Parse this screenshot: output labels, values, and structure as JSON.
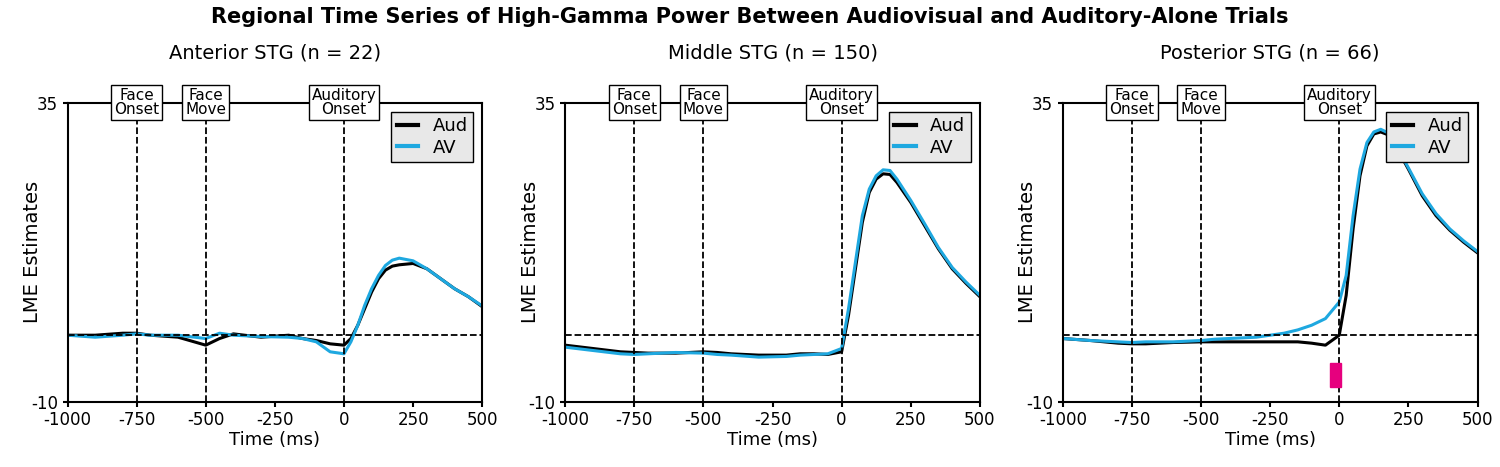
{
  "chart_data": [
    {
      "type": "line",
      "title": "Anterior STG (n = 22)",
      "x_label": "Time (ms)",
      "y_label": "LME Estimates",
      "x": [
        -1000,
        -900,
        -800,
        -750,
        -700,
        -600,
        -500,
        -450,
        -400,
        -300,
        -200,
        -150,
        -100,
        -50,
        0,
        25,
        50,
        75,
        100,
        125,
        150,
        175,
        200,
        250,
        300,
        350,
        400,
        450,
        500
      ],
      "series": [
        {
          "name": "Aud",
          "color": "#000000",
          "values": [
            0,
            0,
            0.3,
            0.3,
            0,
            -0.3,
            -1.5,
            -0.5,
            0.2,
            -0.3,
            0,
            -0.5,
            -0.8,
            -1.3,
            -1.5,
            -0.5,
            1.5,
            4,
            6.5,
            8.5,
            9.8,
            10.4,
            10.6,
            10.8,
            10,
            8.5,
            7,
            5.8,
            4.3
          ]
        },
        {
          "name": "AV",
          "color": "#1ea8e0",
          "values": [
            0,
            -0.3,
            0,
            0.2,
            0,
            0,
            -0.5,
            0.3,
            0,
            -0.2,
            -0.3,
            -0.5,
            -1,
            -2.5,
            -2.8,
            -1,
            1.5,
            4.5,
            7,
            9,
            10.5,
            11.3,
            11.6,
            11.2,
            10,
            8.5,
            7,
            5.8,
            4.4
          ]
        }
      ],
      "xlim": [
        -1000,
        500
      ],
      "xticks": [
        -1000,
        -750,
        -500,
        -250,
        0,
        250,
        500
      ],
      "ylim": [
        -10,
        35
      ],
      "yticks": [
        -10,
        35
      ],
      "legend": "upper right",
      "events": [
        {
          "value": -750,
          "label": "Face\nOnset"
        },
        {
          "value": -500,
          "label": "Face\nMove"
        },
        {
          "value": 0,
          "label": "Auditory\nOnset"
        }
      ],
      "reference_line": 0,
      "significance": []
    },
    {
      "type": "line",
      "title": "Middle STG (n = 150)",
      "x_label": "Time (ms)",
      "y_label": "LME Estimates",
      "x": [
        -1000,
        -900,
        -800,
        -750,
        -700,
        -600,
        -500,
        -450,
        -400,
        -300,
        -200,
        -150,
        -100,
        -50,
        0,
        25,
        50,
        75,
        100,
        125,
        150,
        175,
        200,
        250,
        300,
        350,
        400,
        450,
        500
      ],
      "series": [
        {
          "name": "Aud",
          "color": "#000000",
          "values": [
            -1.5,
            -2,
            -2.5,
            -2.6,
            -2.7,
            -2.7,
            -2.5,
            -2.6,
            -2.8,
            -3,
            -3,
            -2.8,
            -2.8,
            -2.9,
            -2.5,
            3,
            10,
            17,
            21.5,
            23.5,
            24.3,
            24.2,
            23,
            20,
            16.5,
            13,
            10,
            7.8,
            5.8
          ]
        },
        {
          "name": "AV",
          "color": "#1ea8e0",
          "values": [
            -1.8,
            -2.3,
            -2.8,
            -2.9,
            -2.8,
            -2.6,
            -2.7,
            -2.9,
            -3,
            -3.3,
            -3.2,
            -3,
            -2.9,
            -2.8,
            -2,
            4,
            11,
            18,
            22,
            24,
            24.9,
            24.8,
            23.5,
            20.3,
            16.8,
            13.2,
            10.2,
            8,
            6
          ]
        }
      ],
      "xlim": [
        -1000,
        500
      ],
      "xticks": [
        -1000,
        -750,
        -500,
        -250,
        0,
        250,
        500
      ],
      "ylim": [
        -10,
        35
      ],
      "yticks": [
        -10,
        35
      ],
      "legend": "upper right",
      "events": [
        {
          "value": -750,
          "label": "Face\nOnset"
        },
        {
          "value": -500,
          "label": "Face\nMove"
        },
        {
          "value": 0,
          "label": "Auditory\nOnset"
        }
      ],
      "reference_line": 0,
      "significance": []
    },
    {
      "type": "line",
      "title": "Posterior STG (n = 66)",
      "x_label": "Time (ms)",
      "y_label": "LME Estimates",
      "x": [
        -1000,
        -900,
        -800,
        -750,
        -700,
        -600,
        -500,
        -450,
        -400,
        -300,
        -200,
        -150,
        -100,
        -50,
        0,
        25,
        50,
        75,
        100,
        125,
        150,
        175,
        200,
        250,
        300,
        350,
        400,
        450,
        500
      ],
      "series": [
        {
          "name": "Aud",
          "color": "#000000",
          "values": [
            -0.5,
            -0.8,
            -1.2,
            -1.3,
            -1.3,
            -1.1,
            -1,
            -1,
            -1,
            -1,
            -1,
            -1,
            -1.2,
            -1.5,
            0,
            6,
            16,
            24,
            28.5,
            30.3,
            30.6,
            30.2,
            28.8,
            25,
            21,
            18,
            15.8,
            14,
            12.4
          ]
        },
        {
          "name": "AV",
          "color": "#1ea8e0",
          "values": [
            -0.5,
            -0.8,
            -1,
            -1.1,
            -1,
            -1,
            -0.8,
            -0.6,
            -0.5,
            -0.3,
            0.3,
            0.8,
            1.5,
            2.5,
            5,
            9,
            18,
            25,
            29,
            30.6,
            31,
            30.5,
            29,
            25.2,
            21.3,
            18.3,
            16,
            14.2,
            12.6
          ]
        }
      ],
      "xlim": [
        -1000,
        500
      ],
      "xticks": [
        -1000,
        -750,
        -500,
        -250,
        0,
        250,
        500
      ],
      "ylim": [
        -10,
        35
      ],
      "yticks": [
        -10,
        35
      ],
      "legend": "upper right",
      "events": [
        {
          "value": -750,
          "label": "Face\nOnset"
        },
        {
          "value": -500,
          "label": "Face\nMove"
        },
        {
          "value": 0,
          "label": "Auditory\nOnset"
        }
      ],
      "reference_line": 0,
      "significance": [
        [
          -35,
          5
        ]
      ]
    }
  ],
  "suptitle": "Regional Time Series of High-Gamma Power Between Audiovisual and Auditory-Alone Trials"
}
